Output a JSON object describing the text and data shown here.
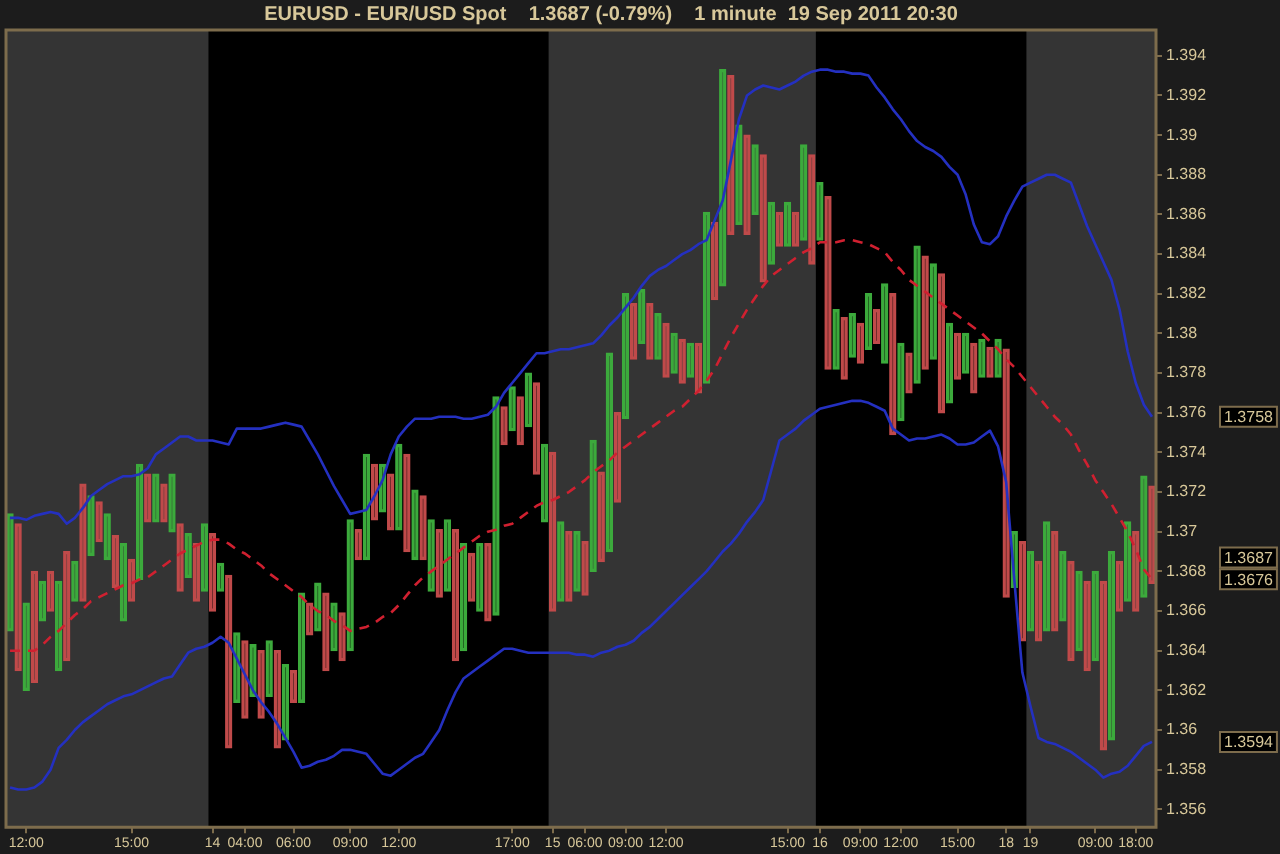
{
  "chart_data": {
    "type": "bar",
    "title": "EURUSD - EUR/USD Spot    1.3687 (-0.79%)    1 minute  19 Sep 2011 20:30",
    "marker": "none",
    "categories": [
      null,
      null,
      "12:00",
      null,
      null,
      null,
      null,
      null,
      null,
      null,
      null,
      null,
      null,
      null,
      null,
      "15:00",
      null,
      null,
      null,
      null,
      null,
      null,
      null,
      null,
      null,
      "14",
      null,
      null,
      null,
      "04:00",
      null,
      null,
      null,
      null,
      null,
      "06:00",
      null,
      null,
      null,
      null,
      null,
      null,
      "09:00",
      null,
      null,
      null,
      null,
      null,
      "12:00",
      null,
      null,
      null,
      null,
      null,
      null,
      null,
      null,
      null,
      null,
      null,
      null,
      null,
      "17:00",
      null,
      null,
      null,
      null,
      "15",
      null,
      null,
      null,
      "06:00",
      null,
      null,
      null,
      null,
      "09:00",
      null,
      null,
      null,
      null,
      "12:00",
      null,
      null,
      null,
      null,
      null,
      null,
      null,
      null,
      null,
      null,
      null,
      null,
      null,
      null,
      "15:00",
      null,
      null,
      null,
      "16",
      null,
      null,
      null,
      null,
      "09:00",
      null,
      null,
      null,
      null,
      "12:00",
      null,
      null,
      null,
      null,
      null,
      null,
      "15:00",
      null,
      null,
      null,
      null,
      null,
      "18",
      null,
      null,
      "19",
      null,
      null,
      null,
      null,
      null,
      null,
      null,
      "09:00",
      null,
      null,
      null,
      null,
      "18:00",
      null,
      null
    ],
    "ylim": [
      1.3551,
      1.3953
    ],
    "yticks": [
      1.356,
      1.358,
      1.36,
      1.362,
      1.364,
      1.366,
      1.368,
      1.37,
      1.372,
      1.374,
      1.376,
      1.378,
      1.38,
      1.382,
      1.384,
      1.386,
      1.388,
      1.39,
      1.392,
      1.394
    ],
    "bands": [
      {
        "axis": "x",
        "from": "14",
        "to": "15",
        "color": "#000000"
      },
      {
        "axis": "x",
        "from": "16",
        "to": "19",
        "color": "#000000"
      }
    ],
    "annotations": [
      "1.3758",
      "1.3687",
      "1.3676",
      "1.3594"
    ],
    "series": [
      {
        "colors": [
          "#3caa3c",
          "#c04a4a",
          "#3caa3c",
          "#c04a4a",
          "#3caa3c",
          "#c04a4a",
          "#3caa3c",
          "#c04a4a",
          "#3caa3c",
          "#c04a4a",
          "#3caa3c",
          "#c04a4a",
          "#3caa3c",
          "#c04a4a",
          "#3caa3c",
          "#c04a4a",
          "#3caa3c",
          "#c04a4a",
          "#3caa3c",
          "#c04a4a",
          "#3caa3c",
          "#c04a4a",
          "#3caa3c",
          "#c04a4a",
          "#3caa3c",
          "#c04a4a",
          "#3caa3c",
          "#c04a4a",
          "#3caa3c",
          "#c04a4a",
          "#3caa3c",
          "#c04a4a",
          "#3caa3c",
          "#c04a4a",
          "#3caa3c",
          "#c04a4a",
          "#3caa3c",
          "#c04a4a",
          "#3caa3c",
          "#c04a4a",
          "#3caa3c",
          "#c04a4a",
          "#3caa3c",
          "#c04a4a",
          "#3caa3c",
          "#c04a4a",
          "#3caa3c",
          "#c04a4a",
          "#3caa3c",
          "#c04a4a",
          "#3caa3c",
          "#c04a4a",
          "#3caa3c",
          "#c04a4a",
          "#3caa3c",
          "#c04a4a",
          "#3caa3c",
          "#c04a4a",
          "#3caa3c",
          "#c04a4a",
          "#3caa3c",
          "#c04a4a",
          "#3caa3c",
          "#c04a4a",
          "#3caa3c",
          "#c04a4a",
          "#3caa3c",
          "#c04a4a",
          "#3caa3c",
          "#c04a4a",
          "#3caa3c",
          "#c04a4a",
          "#3caa3c",
          "#c04a4a",
          "#3caa3c",
          "#c04a4a",
          "#3caa3c",
          "#c04a4a",
          "#3caa3c",
          "#c04a4a",
          "#3caa3c",
          "#c04a4a",
          "#3caa3c",
          "#c04a4a",
          "#3caa3c",
          "#c04a4a",
          "#3caa3c",
          "#c04a4a",
          "#3caa3c",
          "#c04a4a",
          "#3caa3c",
          "#c04a4a",
          "#3caa3c",
          "#c04a4a",
          "#3caa3c",
          "#c04a4a",
          "#3caa3c",
          "#c04a4a",
          "#3caa3c",
          "#c04a4a",
          "#3caa3c",
          "#c04a4a",
          "#3caa3c",
          "#c04a4a",
          "#3caa3c",
          "#c04a4a",
          "#3caa3c",
          "#c04a4a",
          "#3caa3c",
          "#c04a4a",
          "#3caa3c",
          "#c04a4a",
          "#3caa3c",
          "#c04a4a",
          "#3caa3c",
          "#c04a4a",
          "#3caa3c",
          "#c04a4a",
          "#3caa3c",
          "#c04a4a",
          "#3caa3c",
          "#c04a4a",
          "#3caa3c",
          "#c04a4a",
          "#3caa3c",
          "#c04a4a",
          "#3caa3c",
          "#c04a4a",
          "#3caa3c",
          "#c04a4a",
          "#3caa3c",
          "#c04a4a",
          "#3caa3c",
          "#c04a4a",
          "#3caa3c",
          "#c04a4a",
          "#3caa3c",
          "#c04a4a",
          "#3caa3c",
          "#c04a4a",
          "#3caa3c",
          "#c04a4a"
        ],
        "base": [
          1.365,
          1.363,
          1.362,
          1.3624,
          1.3655,
          1.366,
          1.363,
          1.3635,
          1.3665,
          1.3665,
          1.3688,
          1.3695,
          1.3686,
          1.3672,
          1.3655,
          1.3665,
          1.3676,
          1.3705,
          1.3705,
          1.3705,
          1.37,
          1.367,
          1.3677,
          1.3665,
          1.367,
          1.366,
          1.367,
          1.3591,
          1.3614,
          1.3606,
          1.3617,
          1.3606,
          1.3617,
          1.3591,
          1.3595,
          1.3614,
          1.3614,
          1.3648,
          1.365,
          1.363,
          1.364,
          1.3635,
          1.364,
          1.3686,
          1.3686,
          1.3706,
          1.371,
          1.3701,
          1.3701,
          1.369,
          1.3686,
          1.3686,
          1.367,
          1.3667,
          1.367,
          1.3635,
          1.364,
          1.3665,
          1.366,
          1.3655,
          1.3658,
          1.3744,
          1.3751,
          1.3744,
          1.3753,
          1.3729,
          1.3705,
          1.366,
          1.3665,
          1.3665,
          1.367,
          1.3668,
          1.368,
          1.3685,
          1.369,
          1.3715,
          1.3757,
          1.3787,
          1.3795,
          1.3787,
          1.3787,
          1.3778,
          1.378,
          1.3775,
          1.3778,
          1.377,
          1.3775,
          1.3817,
          1.3824,
          1.385,
          1.3855,
          1.385,
          1.386,
          1.3826,
          1.3835,
          1.3844,
          1.3844,
          1.3844,
          1.3847,
          1.3835,
          1.3847,
          1.3782,
          1.3782,
          1.3777,
          1.3788,
          1.3785,
          1.3792,
          1.3795,
          1.3785,
          1.3749,
          1.3756,
          1.377,
          1.3775,
          1.3782,
          1.3787,
          1.376,
          1.3765,
          1.3777,
          1.378,
          1.377,
          1.3778,
          1.3778,
          1.3778,
          1.3667,
          1.3672,
          1.3645,
          1.365,
          1.3645,
          1.365,
          1.365,
          1.3655,
          1.3635,
          1.364,
          1.363,
          1.3635,
          1.359,
          1.3595,
          1.366,
          1.3665,
          1.366,
          1.3667,
          1.3674
        ],
        "values": [
          0.0059,
          0.0074,
          0.0044,
          0.0056,
          0.002,
          0.002,
          0.0045,
          0.0055,
          0.002,
          0.0059,
          0.003,
          0.002,
          0.0023,
          0.0026,
          0.0039,
          0.0021,
          0.0058,
          0.0024,
          0.0024,
          0.0019,
          0.0029,
          0.0034,
          0.0022,
          0.0029,
          0.0034,
          0.0039,
          0.0014,
          0.0087,
          0.0035,
          0.0039,
          0.0026,
          0.0034,
          0.0028,
          0.0049,
          0.0038,
          0.0016,
          0.0055,
          0.0016,
          0.0024,
          0.0039,
          0.0024,
          0.0024,
          0.0066,
          0.0015,
          0.0053,
          0.0028,
          0.0024,
          0.0028,
          0.0043,
          0.0049,
          0.0035,
          0.0032,
          0.0036,
          0.0034,
          0.0036,
          0.0066,
          0.0054,
          0.0024,
          0.0034,
          0.0039,
          0.011,
          0.0019,
          0.0022,
          0.0024,
          0.0027,
          0.0046,
          0.0039,
          0.008,
          0.004,
          0.0035,
          0.003,
          0.0027,
          0.0066,
          0.0045,
          0.01,
          0.0045,
          0.0063,
          0.0028,
          0.0027,
          0.0028,
          0.0023,
          0.0027,
          0.002,
          0.0022,
          0.0017,
          0.0025,
          0.0086,
          0.0039,
          0.0109,
          0.008,
          0.005,
          0.005,
          0.0035,
          0.0064,
          0.0031,
          0.0017,
          0.0022,
          0.0017,
          0.0048,
          0.0055,
          0.0029,
          0.0087,
          0.003,
          0.0031,
          0.0022,
          0.002,
          0.0028,
          0.0017,
          0.004,
          0.0071,
          0.0039,
          0.002,
          0.0069,
          0.0057,
          0.0048,
          0.007,
          0.004,
          0.0023,
          0.002,
          0.0025,
          0.0019,
          0.0015,
          0.0019,
          0.0125,
          0.0028,
          0.005,
          0.004,
          0.004,
          0.0055,
          0.005,
          0.0035,
          0.005,
          0.004,
          0.0045,
          0.0045,
          0.0085,
          0.0095,
          0.0025,
          0.004,
          0.004,
          0.0061,
          0.0049
        ]
      },
      {
        "type": "line",
        "color": "#2430c0",
        "values": [
          1.3707,
          1.3707,
          1.3706,
          1.3708,
          1.3709,
          1.371,
          1.3709,
          1.3704,
          1.3707,
          1.3712,
          1.3718,
          1.3721,
          1.3724,
          1.3726,
          1.3728,
          1.3728,
          1.3729,
          1.3732,
          1.3739,
          1.3742,
          1.3745,
          1.3748,
          1.3748,
          1.3746,
          1.3746,
          1.3746,
          1.3745,
          1.3744,
          1.3752,
          1.3752,
          1.3752,
          1.3752,
          1.3753,
          1.3754,
          1.3755,
          1.3754,
          1.3753,
          1.3746,
          1.3739,
          1.3731,
          1.3723,
          1.3716,
          1.3709,
          1.371,
          1.3711,
          1.3718,
          1.3726,
          1.3739,
          1.3748,
          1.3753,
          1.3757,
          1.3757,
          1.3757,
          1.3758,
          1.3758,
          1.3758,
          1.3757,
          1.3757,
          1.3758,
          1.3759,
          1.3763,
          1.377,
          1.3775,
          1.378,
          1.3785,
          1.379,
          1.379,
          1.3791,
          1.3792,
          1.3792,
          1.3793,
          1.3794,
          1.3795,
          1.3799,
          1.3804,
          1.3808,
          1.3813,
          1.3818,
          1.3824,
          1.3829,
          1.3832,
          1.3834,
          1.3837,
          1.384,
          1.3842,
          1.3845,
          1.3847,
          1.3857,
          1.3867,
          1.3887,
          1.3908,
          1.392,
          1.3923,
          1.3925,
          1.3924,
          1.3923,
          1.3925,
          1.3927,
          1.393,
          1.3932,
          1.3933,
          1.3933,
          1.3932,
          1.3932,
          1.3931,
          1.3931,
          1.393,
          1.3924,
          1.3919,
          1.3913,
          1.3908,
          1.3902,
          1.3897,
          1.3894,
          1.3892,
          1.3889,
          1.3884,
          1.388,
          1.387,
          1.3855,
          1.3846,
          1.3845,
          1.3849,
          1.3859,
          1.3867,
          1.3874,
          1.3876,
          1.3878,
          1.388,
          1.388,
          1.3878,
          1.3876,
          1.3865,
          1.3854,
          1.3845,
          1.3836,
          1.3827,
          1.3812,
          1.3791,
          1.3775,
          1.3764,
          1.3758
        ]
      },
      {
        "type": "line",
        "color": "#2430c0",
        "values": [
          1.3571,
          1.357,
          1.357,
          1.3571,
          1.3574,
          1.358,
          1.3591,
          1.3595,
          1.36,
          1.3604,
          1.3607,
          1.361,
          1.3613,
          1.3615,
          1.3617,
          1.3618,
          1.362,
          1.3622,
          1.3624,
          1.3626,
          1.3627,
          1.3633,
          1.3639,
          1.3641,
          1.3642,
          1.3644,
          1.3647,
          1.3644,
          1.3636,
          1.3628,
          1.362,
          1.3614,
          1.3609,
          1.3603,
          1.3596,
          1.3589,
          1.3581,
          1.3582,
          1.3584,
          1.3585,
          1.3587,
          1.359,
          1.359,
          1.3589,
          1.3588,
          1.3583,
          1.3578,
          1.3577,
          1.358,
          1.3583,
          1.3586,
          1.3588,
          1.3594,
          1.36,
          1.361,
          1.3619,
          1.3626,
          1.3629,
          1.3632,
          1.3635,
          1.3638,
          1.3641,
          1.3641,
          1.364,
          1.3639,
          1.3639,
          1.3639,
          1.3639,
          1.3639,
          1.3639,
          1.3638,
          1.3638,
          1.3637,
          1.3639,
          1.364,
          1.3642,
          1.3643,
          1.3645,
          1.3649,
          1.3652,
          1.3656,
          1.366,
          1.3664,
          1.3668,
          1.3672,
          1.3676,
          1.368,
          1.3685,
          1.369,
          1.3694,
          1.3699,
          1.3705,
          1.371,
          1.3716,
          1.3731,
          1.3746,
          1.3749,
          1.3752,
          1.3756,
          1.3759,
          1.3762,
          1.3763,
          1.3764,
          1.3765,
          1.3766,
          1.3766,
          1.3765,
          1.3763,
          1.3761,
          1.3752,
          1.3749,
          1.3746,
          1.3747,
          1.3747,
          1.3748,
          1.3749,
          1.3747,
          1.3744,
          1.3744,
          1.3745,
          1.3748,
          1.3751,
          1.3743,
          1.3725,
          1.3676,
          1.3629,
          1.3612,
          1.3596,
          1.3594,
          1.3593,
          1.3591,
          1.3589,
          1.3586,
          1.3583,
          1.358,
          1.3576,
          1.3578,
          1.3579,
          1.3582,
          1.3587,
          1.3592,
          1.3594
        ]
      },
      {
        "type": "line",
        "color": "#d02030",
        "line_style": "dashed",
        "values": [
          1.364,
          1.364,
          1.364,
          1.364,
          1.3643,
          1.3647,
          1.365,
          1.3654,
          1.3658,
          1.3661,
          1.3665,
          1.3667,
          1.3669,
          1.3671,
          1.3673,
          1.3674,
          1.3676,
          1.3677,
          1.368,
          1.3683,
          1.3686,
          1.3689,
          1.3691,
          1.3693,
          1.3695,
          1.3696,
          1.3696,
          1.3694,
          1.3691,
          1.3689,
          1.3686,
          1.3683,
          1.3679,
          1.3676,
          1.3673,
          1.367,
          1.3667,
          1.3663,
          1.366,
          1.3658,
          1.3655,
          1.3653,
          1.365,
          1.3651,
          1.3652,
          1.3654,
          1.3657,
          1.3659,
          1.3663,
          1.3668,
          1.3673,
          1.3677,
          1.368,
          1.3683,
          1.3686,
          1.3689,
          1.3692,
          1.3695,
          1.3698,
          1.37,
          1.3701,
          1.3703,
          1.3704,
          1.3707,
          1.371,
          1.3713,
          1.3715,
          1.3716,
          1.3718,
          1.372,
          1.3723,
          1.3726,
          1.373,
          1.3733,
          1.3736,
          1.374,
          1.3743,
          1.3746,
          1.3749,
          1.3752,
          1.3755,
          1.3758,
          1.3761,
          1.3763,
          1.3767,
          1.3771,
          1.3776,
          1.3782,
          1.379,
          1.3798,
          1.3805,
          1.3812,
          1.3818,
          1.3824,
          1.3829,
          1.3832,
          1.3835,
          1.3838,
          1.3841,
          1.3843,
          1.3846,
          1.3846,
          1.3846,
          1.3847,
          1.3847,
          1.3846,
          1.3845,
          1.3843,
          1.3841,
          1.3836,
          1.3832,
          1.3827,
          1.3824,
          1.3821,
          1.3818,
          1.3815,
          1.3812,
          1.3809,
          1.3806,
          1.3803,
          1.38,
          1.3796,
          1.3792,
          1.3787,
          1.3783,
          1.3778,
          1.3773,
          1.3768,
          1.3763,
          1.3758,
          1.3754,
          1.3749,
          1.3741,
          1.3734,
          1.3726,
          1.372,
          1.3714,
          1.3707,
          1.37,
          1.3691,
          1.3681,
          1.3676
        ]
      }
    ]
  }
}
